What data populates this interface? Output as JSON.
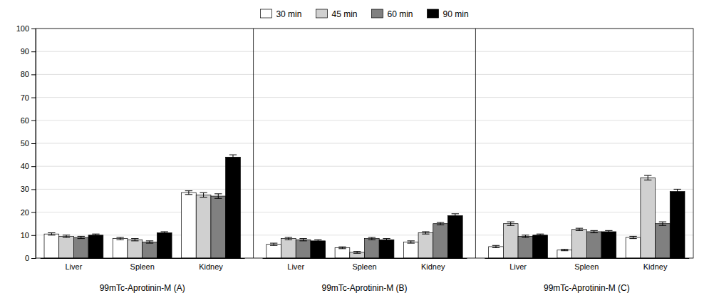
{
  "chart_data": {
    "type": "bar",
    "categories": [
      "Liver",
      "Spleen",
      "Kidney",
      "Liver",
      "Spleen",
      "Kidney",
      "Liver",
      "Spleen",
      "Kidney"
    ],
    "category_groups": [
      "99mTc-Aprotinin-M (A)",
      "99mTc-Aprotinin-M (B)",
      "99mTc-Aprotinin-M (C)"
    ],
    "series": [
      {
        "name": "30 min",
        "color": "#ffffff",
        "values": [
          10.5,
          8.5,
          28.5,
          6.0,
          4.5,
          7.0,
          5.0,
          3.5,
          9.0
        ],
        "errors": [
          0.5,
          0.5,
          0.8,
          0.5,
          0.4,
          0.5,
          0.5,
          0.3,
          0.5
        ]
      },
      {
        "name": "45 min",
        "color": "#d0d0d0",
        "values": [
          9.5,
          8.0,
          27.5,
          8.5,
          2.5,
          11.0,
          15.0,
          12.5,
          35.0
        ],
        "errors": [
          0.5,
          0.5,
          1.0,
          0.5,
          0.4,
          0.5,
          0.8,
          0.5,
          1.0
        ]
      },
      {
        "name": "60 min",
        "color": "#808080",
        "values": [
          9.0,
          7.0,
          27.0,
          8.0,
          8.5,
          15.0,
          9.5,
          11.5,
          15.0
        ],
        "errors": [
          0.5,
          0.5,
          1.0,
          0.5,
          0.5,
          0.5,
          0.5,
          0.5,
          0.8
        ]
      },
      {
        "name": "90 min",
        "color": "#000000",
        "values": [
          10.0,
          11.0,
          44.0,
          7.5,
          8.0,
          18.5,
          10.0,
          11.5,
          29.0
        ],
        "errors": [
          0.5,
          0.5,
          1.0,
          0.5,
          0.5,
          0.8,
          0.5,
          0.5,
          1.0
        ]
      }
    ],
    "ylim": [
      0,
      100
    ],
    "yticks": [
      0,
      10,
      20,
      30,
      40,
      50,
      60,
      70,
      80,
      90,
      100
    ],
    "grid": true,
    "legend": "top"
  }
}
